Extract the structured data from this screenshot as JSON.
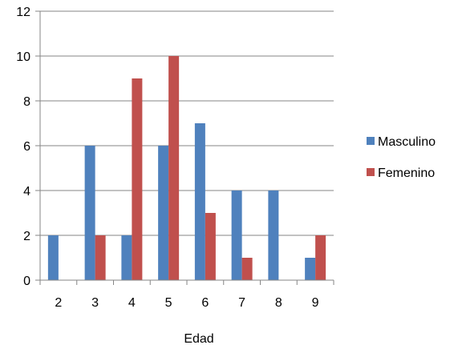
{
  "chart_data": {
    "type": "bar",
    "title": "",
    "xlabel": "Edad",
    "ylabel": "",
    "categories": [
      "2",
      "3",
      "4",
      "5",
      "6",
      "7",
      "8",
      "9"
    ],
    "series": [
      {
        "name": "Masculino",
        "color": "#4f81bd",
        "values": [
          2,
          6,
          2,
          6,
          7,
          4,
          4,
          1
        ]
      },
      {
        "name": "Femenino",
        "color": "#c0504d",
        "values": [
          0,
          2,
          9,
          10,
          3,
          1,
          0,
          2
        ]
      }
    ],
    "ylim": [
      0,
      12
    ],
    "yticks": [
      0,
      2,
      4,
      6,
      8,
      10,
      12
    ],
    "grid": true,
    "legend": "right"
  }
}
